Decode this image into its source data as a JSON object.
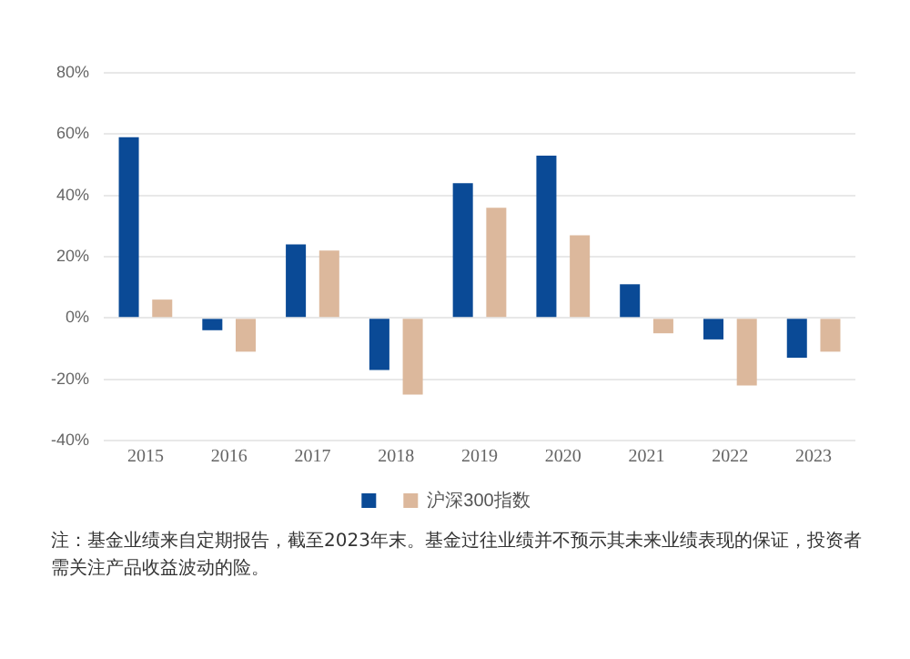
{
  "chart_data": {
    "type": "bar",
    "categories": [
      "2015",
      "2016",
      "2017",
      "2018",
      "2019",
      "2020",
      "2021",
      "2022",
      "2023"
    ],
    "series": [
      {
        "color": "#0a4a96",
        "values": [
          59,
          -4,
          24,
          -17,
          44,
          53,
          11,
          -7,
          -13
        ]
      },
      {
        "name": "沪深300指数",
        "color": "#dcb89c",
        "values": [
          6,
          -11,
          22,
          -25,
          36,
          27,
          -5,
          -22,
          -11
        ]
      }
    ],
    "ylim": [
      -40,
      80
    ],
    "yticks": [
      {
        "value": -40,
        "label": "-40%"
      },
      {
        "value": -20,
        "label": "-20%"
      },
      {
        "value": 0,
        "label": "0%"
      },
      {
        "value": 20,
        "label": "20%"
      },
      {
        "value": 40,
        "label": "40%"
      },
      {
        "value": 60,
        "label": "60%"
      },
      {
        "value": 80,
        "label": "80%"
      }
    ],
    "grid": "y",
    "legend": "bottom",
    "annotations": [
      "注：基金业绩来自定期报告，截至2023年末。基金过往业绩并不预示其未来业绩表现的保证，投资者需关注产品收益波动的险。"
    ]
  }
}
